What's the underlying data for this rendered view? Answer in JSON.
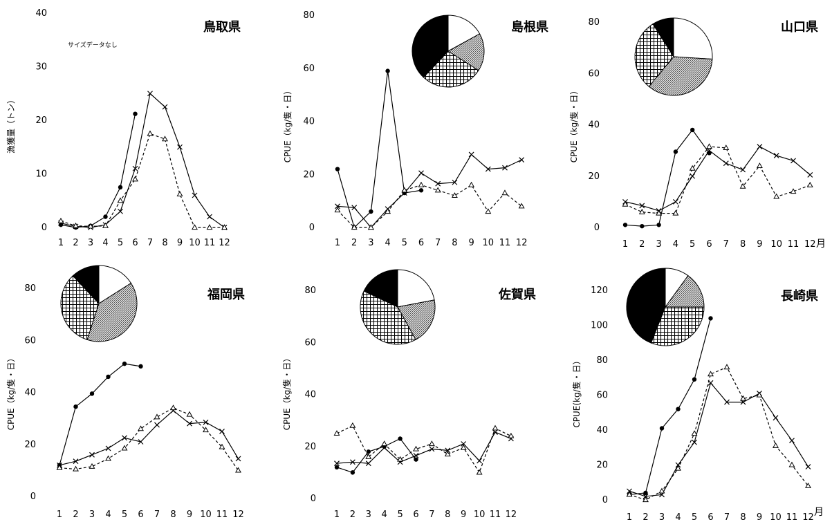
{
  "chart_data": [
    {
      "type": "line",
      "title": "鳥取県",
      "note": "サイズデータなし",
      "ylabel": "漁獲量（トン）",
      "ylim": [
        0,
        40
      ],
      "yticks": [
        0,
        10,
        20,
        30,
        40
      ],
      "x": [
        1,
        2,
        3,
        4,
        5,
        6,
        7,
        8,
        9,
        10,
        11,
        12
      ],
      "series": [
        {
          "style": "solid-dot",
          "values": [
            0.5,
            0,
            0.3,
            2,
            7.5,
            21.2,
            null,
            null,
            null,
            null,
            null,
            null
          ]
        },
        {
          "style": "solid-x",
          "values": [
            0.8,
            0.2,
            0,
            0.5,
            3,
            11,
            25,
            22.5,
            15,
            6,
            2,
            0
          ]
        },
        {
          "style": "dashed-triangle",
          "values": [
            1.2,
            0.3,
            0.2,
            0.3,
            5,
            9,
            17.5,
            16.5,
            6.2,
            0,
            0,
            0
          ]
        }
      ],
      "pie": null
    },
    {
      "type": "line",
      "title": "島根県",
      "ylabel": "CPUE（kg/隻・日）",
      "ylim": [
        0,
        80
      ],
      "yticks": [
        0,
        20,
        40,
        60,
        80
      ],
      "x": [
        1,
        2,
        3,
        4,
        5,
        6,
        7,
        8,
        9,
        10,
        11,
        12
      ],
      "series": [
        {
          "style": "solid-dot",
          "values": [
            22,
            0,
            6,
            59,
            13,
            14,
            null,
            null,
            null,
            null,
            null,
            null
          ]
        },
        {
          "style": "solid-x",
          "values": [
            8,
            7.5,
            0,
            7,
            13,
            20.5,
            16.5,
            17,
            27.5,
            22,
            22.5,
            25.5
          ]
        },
        {
          "style": "dashed-triangle",
          "values": [
            6.5,
            0,
            0,
            6,
            14,
            16,
            14,
            12,
            16,
            6,
            13,
            8
          ]
        }
      ],
      "pie": [
        {
          "pattern": "white",
          "value": 17
        },
        {
          "pattern": "dots",
          "value": 17
        },
        {
          "pattern": "grid",
          "value": 28
        },
        {
          "pattern": "black",
          "value": 38
        }
      ]
    },
    {
      "type": "line",
      "title": "山口県",
      "ylabel": "CPUE（kg/隻・日）",
      "ylim": [
        0,
        80
      ],
      "yticks": [
        0,
        20,
        40,
        60,
        80
      ],
      "x": [
        1,
        2,
        3,
        4,
        5,
        6,
        7,
        8,
        9,
        10,
        11,
        12
      ],
      "xunit": "月",
      "series": [
        {
          "style": "solid-dot",
          "values": [
            1,
            0.5,
            1,
            29.5,
            38,
            29,
            null,
            null,
            null,
            null,
            null,
            null
          ]
        },
        {
          "style": "solid-x",
          "values": [
            10,
            8.5,
            6.5,
            10,
            20,
            30,
            25,
            22.5,
            31.5,
            28,
            26,
            20.5
          ]
        },
        {
          "style": "dashed-triangle",
          "values": [
            9,
            6,
            5.5,
            5.5,
            23,
            31.5,
            31,
            16,
            24,
            12,
            14,
            16.5
          ]
        }
      ],
      "pie": [
        {
          "pattern": "white",
          "value": 26
        },
        {
          "pattern": "dots",
          "value": 35
        },
        {
          "pattern": "grid",
          "value": 30
        },
        {
          "pattern": "black",
          "value": 9
        }
      ]
    },
    {
      "type": "line",
      "title": "福岡県",
      "ylabel": "CPUE（kg/隻・日）",
      "ylim": [
        0,
        80
      ],
      "yticks": [
        0,
        20,
        40,
        60,
        80
      ],
      "x": [
        1,
        2,
        3,
        4,
        5,
        6,
        7,
        8,
        9,
        10,
        11,
        12
      ],
      "series": [
        {
          "style": "solid-dot",
          "values": [
            12,
            34.5,
            39.5,
            46,
            51,
            50,
            null,
            null,
            null,
            null,
            null,
            null
          ]
        },
        {
          "style": "solid-x",
          "values": [
            12,
            13.5,
            16,
            18.5,
            22.5,
            21,
            27.5,
            33,
            28,
            28.5,
            25,
            14.5
          ]
        },
        {
          "style": "dashed-triangle",
          "values": [
            11,
            10.5,
            11.5,
            14.5,
            18.5,
            26,
            30.5,
            34,
            31.5,
            25.5,
            19,
            10
          ]
        }
      ],
      "pie": [
        {
          "pattern": "white",
          "value": 16
        },
        {
          "pattern": "dots",
          "value": 39
        },
        {
          "pattern": "grid",
          "value": 33
        },
        {
          "pattern": "black",
          "value": 12
        }
      ]
    },
    {
      "type": "line",
      "title": "佐賀県",
      "ylabel": "CPUE（kg/隻・日）",
      "ylim": [
        0,
        80
      ],
      "yticks": [
        0,
        20,
        40,
        60,
        80
      ],
      "x": [
        1,
        2,
        3,
        4,
        5,
        6,
        7,
        8,
        9,
        10,
        11,
        12
      ],
      "series": [
        {
          "style": "solid-dot",
          "values": [
            12,
            10,
            18,
            20,
            23,
            15,
            null,
            null,
            null,
            null,
            null,
            null
          ]
        },
        {
          "style": "solid-x",
          "values": [
            13.5,
            14,
            13.5,
            19.5,
            14,
            16.5,
            19,
            18.5,
            21,
            14.5,
            25.5,
            23
          ]
        },
        {
          "style": "dashed-triangle",
          "values": [
            25,
            28,
            16,
            21,
            15,
            19,
            21,
            17,
            19.5,
            10,
            27,
            24
          ]
        }
      ],
      "pie": [
        {
          "pattern": "white",
          "value": 22
        },
        {
          "pattern": "dots",
          "value": 20
        },
        {
          "pattern": "grid",
          "value": 40
        },
        {
          "pattern": "black",
          "value": 18
        }
      ]
    },
    {
      "type": "line",
      "title": "長崎県",
      "ylabel": "CPUE(kg/隻・日）",
      "ylim": [
        0,
        120
      ],
      "yticks": [
        0,
        20,
        40,
        60,
        80,
        100,
        120
      ],
      "x": [
        1,
        2,
        3,
        4,
        5,
        6,
        7,
        8,
        9,
        10,
        11,
        12
      ],
      "xunit": "月",
      "series": [
        {
          "style": "solid-dot",
          "values": [
            3,
            4,
            41,
            52,
            69,
            104,
            null,
            null,
            null,
            null,
            null,
            null
          ]
        },
        {
          "style": "solid-x",
          "values": [
            5,
            2,
            3,
            20,
            33,
            67,
            56,
            56,
            61,
            47,
            34,
            19
          ]
        },
        {
          "style": "dashed-triangle",
          "values": [
            3,
            0,
            5,
            18,
            38,
            72,
            76,
            58,
            60,
            31,
            20,
            8
          ]
        }
      ],
      "pie": [
        {
          "pattern": "white",
          "value": 10
        },
        {
          "pattern": "dots",
          "value": 15
        },
        {
          "pattern": "grid",
          "value": 31
        },
        {
          "pattern": "black",
          "value": 44
        }
      ]
    }
  ]
}
